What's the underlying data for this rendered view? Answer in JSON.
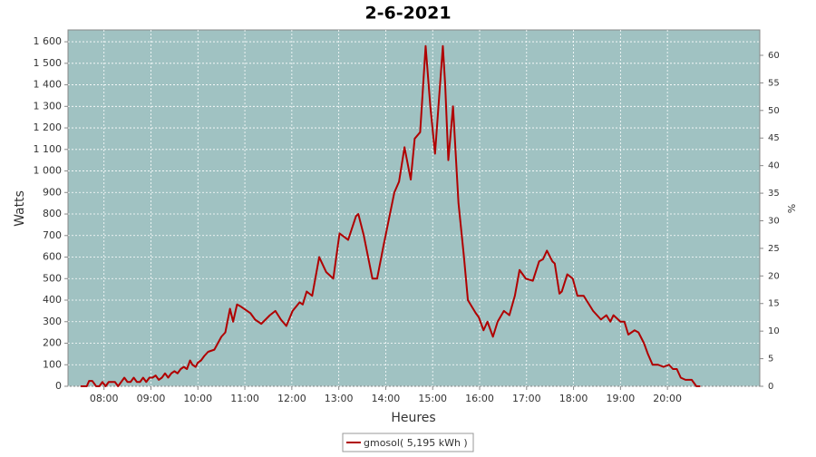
{
  "chart_data": {
    "type": "line",
    "title": "2-6-2021",
    "x_label": "Heures",
    "y_label": "Watts",
    "y2_label": "%",
    "x": [
      450,
      458,
      461,
      465,
      470,
      474,
      478,
      482,
      486,
      490,
      494,
      498,
      502,
      506,
      510,
      514,
      518,
      522,
      526,
      530,
      534,
      538,
      542,
      546,
      550,
      554,
      558,
      562,
      566,
      570,
      574,
      578,
      582,
      586,
      590,
      593,
      597,
      600,
      604,
      608,
      613,
      621,
      630,
      635,
      641,
      645,
      650,
      655,
      667,
      673,
      681,
      692,
      699,
      706,
      713,
      721,
      730,
      734,
      739,
      746,
      755,
      764,
      773,
      781,
      792,
      802,
      805,
      812,
      823,
      829,
      837,
      851,
      857,
      864,
      872,
      877,
      884,
      891,
      897,
      903,
      913,
      916,
      920,
      926,
      933,
      940,
      945,
      955,
      959,
      965,
      970,
      977,
      983,
      991,
      998,
      1005,
      1011,
      1019,
      1028,
      1036,
      1041,
      1046,
      1053,
      1056,
      1062,
      1065,
      1072,
      1079,
      1085,
      1093,
      1105,
      1115,
      1122,
      1127,
      1131,
      1140,
      1145,
      1150,
      1158,
      1163,
      1170,
      1175,
      1181,
      1188,
      1195,
      1202,
      1207,
      1212,
      1217,
      1223,
      1231,
      1237,
      1242
    ],
    "series": [
      {
        "name": "gmosol( 5,195 kWh )",
        "color": "#b00000",
        "values": [
          0,
          0,
          25,
          25,
          0,
          0,
          20,
          0,
          20,
          20,
          20,
          0,
          20,
          40,
          20,
          20,
          40,
          20,
          20,
          40,
          20,
          40,
          40,
          50,
          30,
          40,
          60,
          40,
          60,
          70,
          60,
          80,
          90,
          80,
          120,
          100,
          90,
          110,
          120,
          140,
          160,
          170,
          230,
          250,
          360,
          300,
          380,
          370,
          340,
          310,
          290,
          330,
          350,
          310,
          280,
          350,
          390,
          380,
          440,
          420,
          600,
          530,
          500,
          710,
          680,
          790,
          800,
          700,
          500,
          500,
          650,
          900,
          950,
          1110,
          960,
          1150,
          1180,
          1580,
          1300,
          1080,
          1580,
          1400,
          1050,
          1300,
          850,
          600,
          400,
          340,
          320,
          260,
          300,
          230,
          300,
          350,
          330,
          420,
          540,
          500,
          490,
          580,
          590,
          630,
          580,
          570,
          430,
          440,
          520,
          500,
          420,
          420,
          350,
          310,
          330,
          300,
          330,
          300,
          300,
          240,
          260,
          250,
          200,
          150,
          100,
          100,
          90,
          100,
          80,
          80,
          40,
          30,
          30,
          0,
          0
        ]
      }
    ],
    "xlim": [
      434,
      1318
    ],
    "xticks": [
      {
        "value": 480,
        "label": "08:00"
      },
      {
        "value": 540,
        "label": "09:00"
      },
      {
        "value": 600,
        "label": "10:00"
      },
      {
        "value": 660,
        "label": "11:00"
      },
      {
        "value": 720,
        "label": "12:00"
      },
      {
        "value": 780,
        "label": "13:00"
      },
      {
        "value": 840,
        "label": "14:00"
      },
      {
        "value": 900,
        "label": "15:00"
      },
      {
        "value": 960,
        "label": "16:00"
      },
      {
        "value": 1020,
        "label": "17:00"
      },
      {
        "value": 1080,
        "label": "18:00"
      },
      {
        "value": 1140,
        "label": "19:00"
      },
      {
        "value": 1200,
        "label": "20:00"
      }
    ],
    "ylim": [
      0,
      1655
    ],
    "yticks": [
      0,
      100,
      200,
      300,
      400,
      500,
      600,
      700,
      800,
      900,
      {
        "value": 1000,
        "label": "1 000"
      },
      {
        "value": 1100,
        "label": "1 100"
      },
      {
        "value": 1200,
        "label": "1 200"
      },
      {
        "value": 1300,
        "label": "1 300"
      },
      {
        "value": 1400,
        "label": "1 400"
      },
      {
        "value": 1500,
        "label": "1 500"
      },
      {
        "value": 1600,
        "label": "1 600"
      }
    ],
    "y2lim": [
      0,
      64.6
    ],
    "y2ticks": [
      0,
      5,
      10,
      15,
      20,
      25,
      30,
      35,
      40,
      45,
      50,
      55,
      60
    ],
    "grid": true,
    "plot_background": "#a0c2c2"
  }
}
